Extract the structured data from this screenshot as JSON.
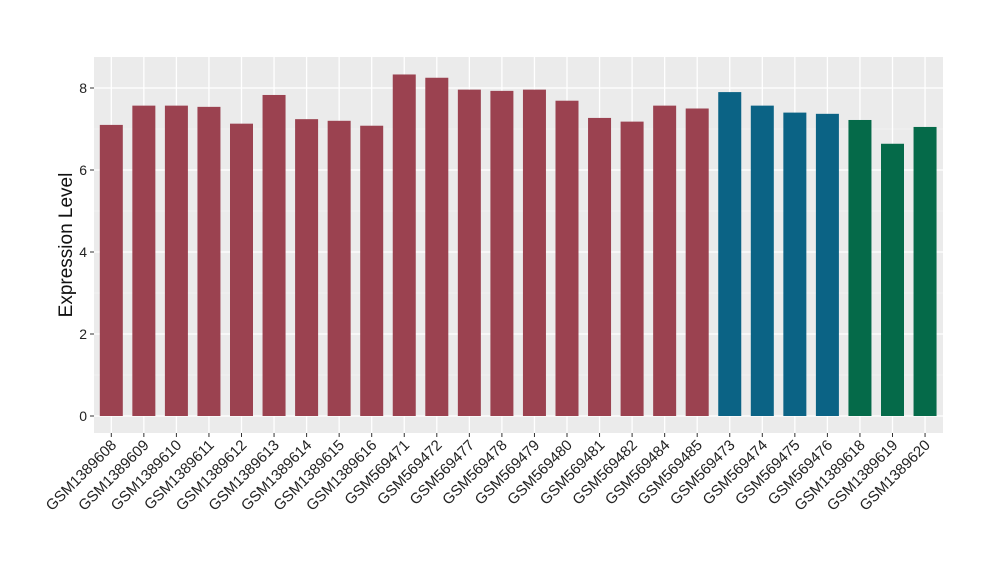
{
  "chart_data": {
    "type": "bar",
    "title": "",
    "xlabel": "",
    "ylabel": "Expression Level",
    "ylim": [
      0,
      8.6
    ],
    "yticks": [
      0,
      2,
      4,
      6,
      8
    ],
    "grid": true,
    "legend": "none",
    "colors": {
      "panel_background": "#ebebeb",
      "grid_major": "#ffffff",
      "grid_minor": "#f5f5f5",
      "group_1": "#9b4250",
      "group_2": "#0b6385",
      "group_3": "#056a49",
      "tick": "#333333"
    },
    "categories": [
      "GSM1389608",
      "GSM1389609",
      "GSM1389610",
      "GSM1389611",
      "GSM1389612",
      "GSM1389613",
      "GSM1389614",
      "GSM1389615",
      "GSM1389616",
      "GSM569471",
      "GSM569472",
      "GSM569477",
      "GSM569478",
      "GSM569479",
      "GSM569480",
      "GSM569481",
      "GSM569482",
      "GSM569484",
      "GSM569485",
      "GSM569473",
      "GSM569474",
      "GSM569475",
      "GSM569476",
      "GSM1389618",
      "GSM1389619",
      "GSM1389620"
    ],
    "values": [
      7.1,
      7.57,
      7.57,
      7.54,
      7.13,
      7.83,
      7.24,
      7.2,
      7.08,
      8.33,
      8.25,
      7.96,
      7.93,
      7.96,
      7.69,
      7.27,
      7.18,
      7.57,
      7.5,
      7.9,
      7.57,
      7.4,
      7.37,
      7.22,
      6.64,
      7.05
    ],
    "bar_groups": [
      "group_1",
      "group_1",
      "group_1",
      "group_1",
      "group_1",
      "group_1",
      "group_1",
      "group_1",
      "group_1",
      "group_1",
      "group_1",
      "group_1",
      "group_1",
      "group_1",
      "group_1",
      "group_1",
      "group_1",
      "group_1",
      "group_1",
      "group_2",
      "group_2",
      "group_2",
      "group_2",
      "group_3",
      "group_3",
      "group_3"
    ]
  }
}
